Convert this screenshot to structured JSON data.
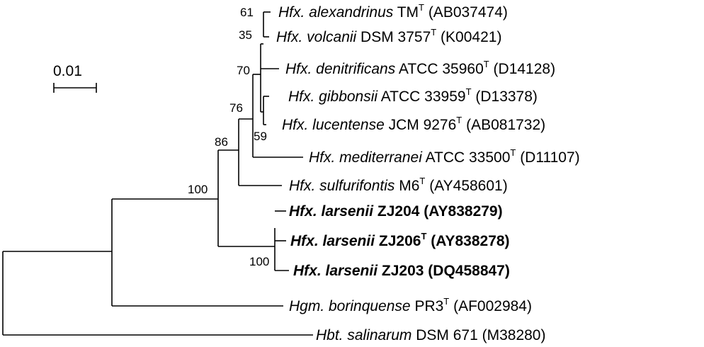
{
  "scale_bar": {
    "label": "0.01"
  },
  "bootstrap": {
    "n61": "61",
    "n35": "35",
    "n70": "70",
    "n59": "59",
    "n76": "76",
    "n86": "86",
    "n100a": "100",
    "n100b": "100"
  },
  "taxa": [
    {
      "genus": "Hfx.",
      "species": "alexandrinus",
      "strain": "TM",
      "type_strain": true,
      "accession": "(AB037474)",
      "bold": false
    },
    {
      "genus": "Hfx.",
      "species": "volcanii",
      "strain": "DSM 3757",
      "type_strain": true,
      "accession": "(K00421)",
      "bold": false
    },
    {
      "genus": "Hfx.",
      "species": "denitrificans",
      "strain": "ATCC 35960",
      "type_strain": true,
      "accession": "(D14128)",
      "bold": false
    },
    {
      "genus": "Hfx.",
      "species": "gibbonsii",
      "strain": "ATCC 33959",
      "type_strain": true,
      "accession": "(D13378)",
      "bold": false
    },
    {
      "genus": "Hfx.",
      "species": "lucentense",
      "strain": "JCM 9276",
      "type_strain": true,
      "accession": "(AB081732)",
      "bold": false
    },
    {
      "genus": "Hfx.",
      "species": "mediterranei",
      "strain": "ATCC 33500",
      "type_strain": true,
      "accession": "(D11107)",
      "bold": false
    },
    {
      "genus": "Hfx.",
      "species": "sulfurifontis",
      "strain": "M6",
      "type_strain": true,
      "accession": "(AY458601)",
      "bold": false
    },
    {
      "genus": "Hfx.",
      "species": "larsenii",
      "strain": "ZJ204",
      "type_strain": false,
      "accession": "(AY838279)",
      "bold": true
    },
    {
      "genus": "Hfx.",
      "species": "larsenii",
      "strain": "ZJ206",
      "type_strain": true,
      "accession": "(AY838278)",
      "bold": true
    },
    {
      "genus": "Hfx.",
      "species": "larsenii",
      "strain": "ZJ203",
      "type_strain": false,
      "accession": "(DQ458847)",
      "bold": true
    },
    {
      "genus": "Hgm.",
      "species": "borinquense",
      "strain": "PR3",
      "type_strain": true,
      "accession": "(AF002984)",
      "bold": false
    },
    {
      "genus": "Hbt.",
      "species": "salinarum",
      "strain": "DSM 671",
      "type_strain": false,
      "accession": "(M38280)",
      "bold": false
    }
  ],
  "type_strain_mark": "T"
}
